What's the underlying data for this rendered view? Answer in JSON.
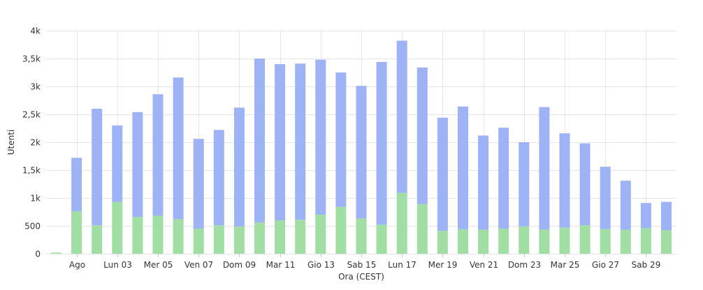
{
  "colors": {
    "new_users": "#a0dea4",
    "returning_users": "#9db3f5",
    "grid": "#e6e6e6",
    "text": "#333333"
  },
  "chart_data": {
    "type": "bar",
    "stacked": true,
    "xlabel": "Ora (CEST)",
    "ylabel": "Utenti",
    "ylim": [
      0,
      4000
    ],
    "y_ticks": [
      0,
      500,
      1000,
      1500,
      2000,
      2500,
      3000,
      3500,
      4000
    ],
    "y_tick_labels": [
      "0",
      "500",
      "1k",
      "1,5k",
      "2k",
      "2,5k",
      "3k",
      "3,5k",
      "4k"
    ],
    "grid": true,
    "x_tick_labels": [
      {
        "index": 1,
        "label": "Ago"
      },
      {
        "index": 3,
        "label": "Lun 03"
      },
      {
        "index": 5,
        "label": "Mer 05"
      },
      {
        "index": 7,
        "label": "Ven 07"
      },
      {
        "index": 9,
        "label": "Dom 09"
      },
      {
        "index": 11,
        "label": "Mar 11"
      },
      {
        "index": 13,
        "label": "Gio 13"
      },
      {
        "index": 15,
        "label": "Sab 15"
      },
      {
        "index": 17,
        "label": "Lun 17"
      },
      {
        "index": 19,
        "label": "Mer 19"
      },
      {
        "index": 21,
        "label": "Ven 21"
      },
      {
        "index": 23,
        "label": "Dom 23"
      },
      {
        "index": 25,
        "label": "Mar 25"
      },
      {
        "index": 27,
        "label": "Gio 27"
      },
      {
        "index": 29,
        "label": "Sab 29"
      }
    ],
    "series": [
      {
        "color": "#a0dea4",
        "values": [
          20,
          760,
          510,
          930,
          660,
          680,
          620,
          450,
          510,
          490,
          560,
          600,
          610,
          700,
          840,
          630,
          520,
          1090,
          890,
          410,
          440,
          430,
          450,
          490,
          430,
          470,
          510,
          440,
          430,
          460,
          420
        ]
      },
      {
        "color": "#9db3f5",
        "values": [
          0,
          960,
          2090,
          1370,
          1880,
          2180,
          2540,
          1610,
          1710,
          2130,
          2940,
          2800,
          2800,
          2780,
          2410,
          2380,
          2920,
          2730,
          2450,
          2030,
          2200,
          1690,
          1810,
          1510,
          2200,
          1690,
          1470,
          1120,
          880,
          450,
          510
        ]
      }
    ]
  }
}
